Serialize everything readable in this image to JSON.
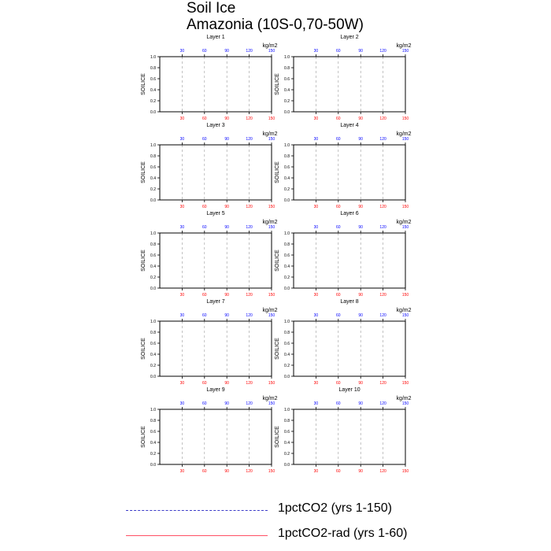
{
  "title": {
    "line1": "Soil Ice",
    "line2": "Amazonia (10S-0,70-50W)"
  },
  "colors": {
    "axis": "#000000",
    "grid": "#999999",
    "top_ticks": "#0000ff",
    "bottom_ticks": "#ff0000",
    "series_1pct": "#3c3cc8",
    "series_rad": "#ff5064"
  },
  "chart_data": {
    "type": "line",
    "ylabel": "SOILICE",
    "units": "kg/m2",
    "ylim": [
      0,
      1
    ],
    "y_ticks": [
      "0.0",
      "0.2",
      "0.4",
      "0.6",
      "0.8",
      "1.0"
    ],
    "x_top_ticks": [
      "30",
      "60",
      "90",
      "120",
      "150"
    ],
    "x_bottom_ticks": [
      "30",
      "60",
      "90",
      "120",
      "150"
    ],
    "xlim": [
      0,
      150
    ],
    "grid_x": [
      30,
      60,
      90,
      120,
      150
    ],
    "panels": [
      {
        "title": "Layer 1"
      },
      {
        "title": "Layer 2"
      },
      {
        "title": "Layer 3"
      },
      {
        "title": "Layer 4"
      },
      {
        "title": "Layer 5"
      },
      {
        "title": "Layer 6"
      },
      {
        "title": "Layer 7"
      },
      {
        "title": "Layer 8"
      },
      {
        "title": "Layer 9"
      },
      {
        "title": "Layer 10"
      }
    ],
    "series": [
      {
        "name": "1pctCO2 (yrs 1-150)",
        "style": "dashed",
        "values": []
      },
      {
        "name": "1pctCO2-rad (yrs 1-60)",
        "style": "solid",
        "values": []
      }
    ]
  },
  "legend": [
    {
      "label": "1pctCO2 (yrs 1-150)"
    },
    {
      "label": "1pctCO2-rad (yrs 1-60)"
    }
  ]
}
